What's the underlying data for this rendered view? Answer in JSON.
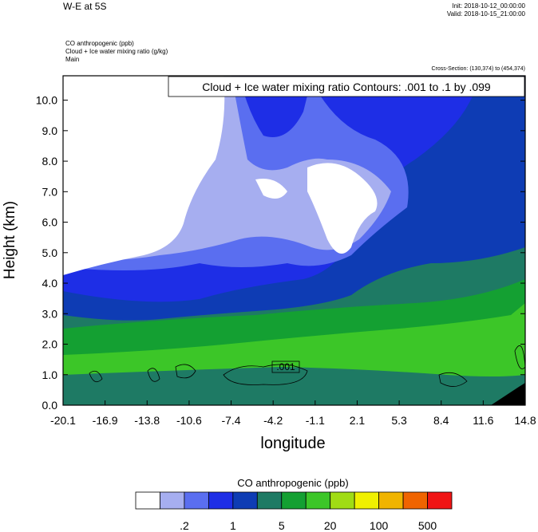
{
  "header": {
    "title": "W-E at 5S",
    "init": "Init: 2018-10-12_00:00:00",
    "valid": "Valid: 2018-10-15_21:00:00"
  },
  "meta": {
    "line1": "CO anthropogenic   (ppb)",
    "line2": "Cloud + Ice water mixing ratio   (g/kg)",
    "line3": "Main"
  },
  "cross_section": "Cross-Section: (130,374) to (454,374)",
  "contour_label": "Cloud + Ice water mixing ratio Contours: .001 to .1 by .099",
  "contour_value_label": ".001",
  "colors": {
    "levels": [
      "#ffffff",
      "#a6aef0",
      "#5a6ef0",
      "#1e2ee6",
      "#0e3cb4",
      "#1e7a64",
      "#14a032",
      "#3cc628",
      "#a0dc14",
      "#f0f000",
      "#f0b400",
      "#f06400",
      "#f01414"
    ]
  },
  "colorbar": {
    "title": "CO anthropogenic  (ppb)",
    "labels": [
      ".2",
      "1",
      "5",
      "20",
      "100",
      "500"
    ]
  },
  "chart_data": {
    "type": "heatmap",
    "xlabel": "longitude",
    "ylabel": "Height (km)",
    "xlim": [
      -20.1,
      14.8
    ],
    "ylim": [
      0.0,
      10.8
    ],
    "x_ticks": [
      "-20.1",
      "-16.9",
      "-13.8",
      "-10.6",
      "-7.4",
      "-4.2",
      "-1.1",
      "2.1",
      "5.3",
      "8.4",
      "11.6",
      "14.8"
    ],
    "y_ticks": [
      "0.0",
      "1.0",
      "2.0",
      "3.0",
      "4.0",
      "5.0",
      "6.0",
      "7.0",
      "8.0",
      "9.0",
      "10.0"
    ],
    "y_tick_values": [
      0,
      1,
      2,
      3,
      4,
      5,
      6,
      7,
      8,
      9,
      10
    ],
    "filled_field": "CO anthropogenic (ppb)",
    "contour_field": "Cloud + Ice water mixing ratio (g/kg)",
    "contour_levels": [
      0.001,
      0.1
    ]
  }
}
